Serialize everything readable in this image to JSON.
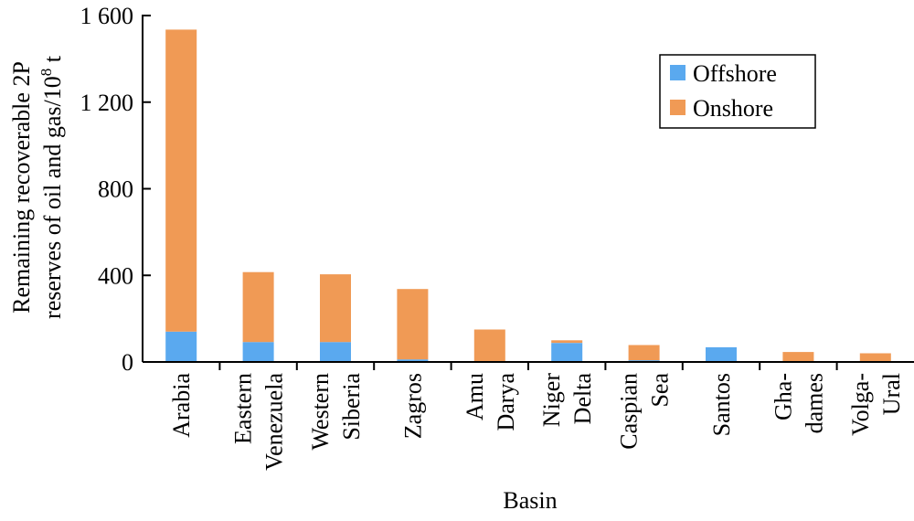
{
  "chart_data": {
    "type": "bar",
    "stacked": true,
    "xlabel": "Basin",
    "ylabel_line1": "Remaining recoverable 2P",
    "ylabel_line2_prefix": "reserves of oil and gas/10",
    "ylabel_line2_sup": "8",
    "ylabel_line2_suffix": " t",
    "ylim": [
      0,
      1600
    ],
    "yticks": [
      0,
      400,
      800,
      1200,
      1600
    ],
    "ytick_labels": [
      "0",
      "400",
      "800",
      "1 200",
      "1 600"
    ],
    "categories": [
      [
        "Arabia"
      ],
      [
        "Eastern",
        "Venezuela"
      ],
      [
        "Western",
        "Siberia"
      ],
      [
        "Zagros"
      ],
      [
        "Amu",
        "Darya"
      ],
      [
        "Niger",
        "Delta"
      ],
      [
        "Caspian",
        "Sea"
      ],
      [
        "Santos"
      ],
      [
        "Gha-",
        "dames"
      ],
      [
        "Volga-",
        "Ural"
      ]
    ],
    "series": [
      {
        "name": "Offshore",
        "color": "#5aa9ef",
        "values": [
          140,
          92,
          92,
          12,
          0,
          88,
          8,
          68,
          0,
          0
        ]
      },
      {
        "name": "Onshore",
        "color": "#f09a55",
        "values": [
          1395,
          323,
          313,
          325,
          150,
          12,
          70,
          0,
          46,
          40
        ]
      }
    ],
    "legend_position": "top-right",
    "grid": false
  }
}
